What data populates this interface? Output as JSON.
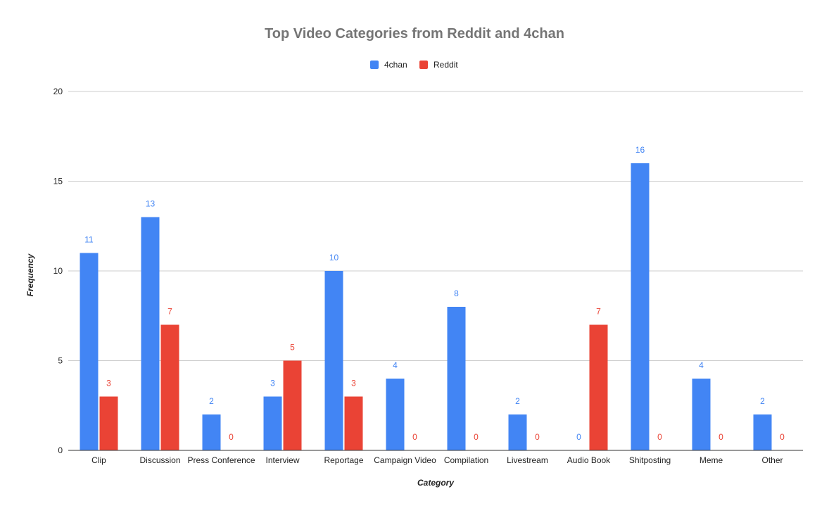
{
  "chart_data": {
    "type": "bar",
    "title": "Top Video Categories from Reddit and 4chan",
    "xlabel": "Category",
    "ylabel": "Frequency",
    "ylim": [
      0,
      20
    ],
    "yticks": [
      0,
      5,
      10,
      15,
      20
    ],
    "grid": true,
    "legend_position": "top",
    "categories": [
      "Clip",
      "Discussion",
      "Press Conference",
      "Interview",
      "Reportage",
      "Campaign Video",
      "Compilation",
      "Livestream",
      "Audio Book",
      "Shitposting",
      "Meme",
      "Other"
    ],
    "series": [
      {
        "name": "4chan",
        "color": "#4285f4",
        "values": [
          11,
          13,
          2,
          3,
          10,
          4,
          8,
          2,
          0,
          16,
          4,
          2
        ]
      },
      {
        "name": "Reddit",
        "color": "#ea4335",
        "values": [
          3,
          7,
          0,
          5,
          3,
          0,
          0,
          0,
          7,
          0,
          0,
          0
        ]
      }
    ]
  }
}
